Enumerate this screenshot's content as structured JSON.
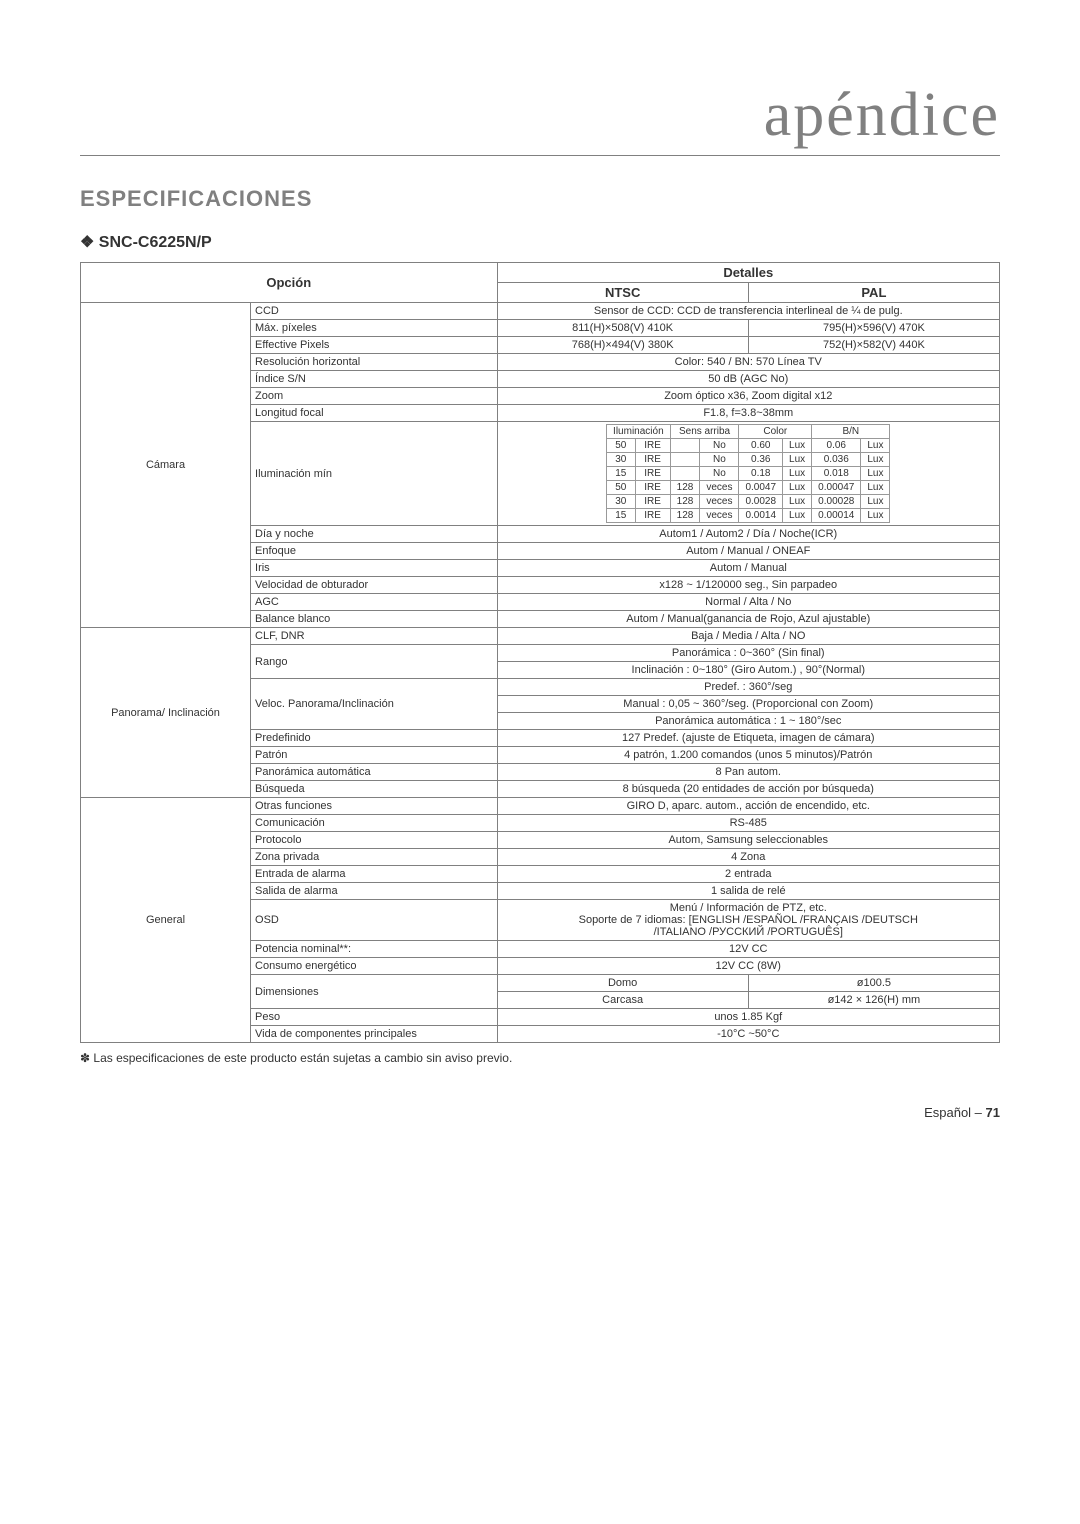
{
  "header": {
    "title_right": "apéndice"
  },
  "section": {
    "title": "ESPECIFICACIONES",
    "model": "SNC-C6225N/P"
  },
  "tableHeader": {
    "opcion": "Opción",
    "detalles": "Detalles",
    "ntsc": "NTSC",
    "pal": "PAL"
  },
  "groups": {
    "camara": "Cámara",
    "panorama": "Panorama/ Inclinación",
    "general": "General"
  },
  "camara": {
    "ccd": {
      "label": "CCD",
      "value": "Sensor de CCD: CCD de transferencia interlineal de ¼ de pulg."
    },
    "max_pixeles": {
      "label": "Máx. píxeles",
      "ntsc": "811(H)×508(V) 410K",
      "pal": "795(H)×596(V) 470K"
    },
    "effective_pixels": {
      "label": "Effective Pixels",
      "ntsc": "768(H)×494(V) 380K",
      "pal": "752(H)×582(V) 440K"
    },
    "resolucion": {
      "label": "Resolución horizontal",
      "value": "Color: 540 / BN: 570 Línea TV"
    },
    "indice_sn": {
      "label": "Índice S/N",
      "value": "50 dB (AGC No)"
    },
    "zoom": {
      "label": "Zoom",
      "value": "Zoom óptico x36, Zoom digital x12"
    },
    "longitud_focal": {
      "label": "Longitud focal",
      "value": "F1.8, f=3.8~38mm"
    },
    "iluminacion_min": {
      "label": "Iluminación mín"
    },
    "ilum_hdr": {
      "iluminacion": "Iluminación",
      "sens": "Sens arriba",
      "color": "Color",
      "bn": "B/N"
    },
    "ilum_rows": [
      {
        "a": "50",
        "b": "IRE",
        "c": "",
        "d": "No",
        "e": "0.60",
        "f": "Lux",
        "g": "0.06",
        "h": "Lux"
      },
      {
        "a": "30",
        "b": "IRE",
        "c": "",
        "d": "No",
        "e": "0.36",
        "f": "Lux",
        "g": "0.036",
        "h": "Lux"
      },
      {
        "a": "15",
        "b": "IRE",
        "c": "",
        "d": "No",
        "e": "0.18",
        "f": "Lux",
        "g": "0.018",
        "h": "Lux"
      },
      {
        "a": "50",
        "b": "IRE",
        "c": "128",
        "d": "veces",
        "e": "0.0047",
        "f": "Lux",
        "g": "0.00047",
        "h": "Lux"
      },
      {
        "a": "30",
        "b": "IRE",
        "c": "128",
        "d": "veces",
        "e": "0.0028",
        "f": "Lux",
        "g": "0.00028",
        "h": "Lux"
      },
      {
        "a": "15",
        "b": "IRE",
        "c": "128",
        "d": "veces",
        "e": "0.0014",
        "f": "Lux",
        "g": "0.00014",
        "h": "Lux"
      }
    ],
    "dia_noche": {
      "label": "Día y noche",
      "value": "Autom1 / Autom2 / Día / Noche(ICR)"
    },
    "enfoque": {
      "label": "Enfoque",
      "value": "Autom / Manual / ONEAF"
    },
    "iris": {
      "label": "Iris",
      "value": "Autom / Manual"
    },
    "velocidad_obturador": {
      "label": "Velocidad de obturador",
      "value": "x128 ~ 1/120000 seg., Sin parpadeo"
    },
    "agc": {
      "label": "AGC",
      "value": "Normal / Alta / No"
    },
    "balance": {
      "label": "Balance blanco",
      "value": "Autom / Manual(ganancia de Rojo, Azul ajustable)"
    },
    "clf_dnr": {
      "label": "CLF, DNR",
      "value": "Baja / Media / Alta / NO"
    }
  },
  "panorama": {
    "rango": {
      "label": "Rango",
      "line1": "Panorámica : 0~360° (Sin final)",
      "line2": "Inclinación : 0~180° (Giro Autom.) , 90°(Normal)"
    },
    "veloc": {
      "label": "Veloc. Panorama/Inclinación",
      "line1": "Predef. : 360°/seg",
      "line2": "Manual : 0,05 ~ 360°/seg. (Proporcional con Zoom)",
      "line3": "Panorámica automática : 1 ~ 180°/sec"
    },
    "predefinido": {
      "label": "Predefinido",
      "value": "127 Predef. (ajuste de Etiqueta, imagen de cámara)"
    },
    "patron": {
      "label": "Patrón",
      "value": "4 patrón, 1.200 comandos (unos 5 minutos)/Patrón"
    },
    "panoramica_auto": {
      "label": "Panorámica automática",
      "value": "8 Pan autom."
    },
    "busqueda": {
      "label": "Búsqueda",
      "value": "8 búsqueda (20 entidades de acción por búsqueda)"
    },
    "otras": {
      "label": "Otras funciones",
      "value": "GIRO D, aparc. autom., acción de encendido, etc."
    }
  },
  "general": {
    "comunicacion": {
      "label": "Comunicación",
      "value": "RS-485"
    },
    "protocolo": {
      "label": "Protocolo",
      "value": "Autom, Samsung seleccionables"
    },
    "zona_privada": {
      "label": "Zona privada",
      "value": "4 Zona"
    },
    "entrada_alarma": {
      "label": "Entrada de alarma",
      "value": "2 entrada"
    },
    "salida_alarma": {
      "label": "Salida de alarma",
      "value": "1 salida de relé"
    },
    "osd": {
      "label": "OSD",
      "line1": "Menú / Información de PTZ, etc.",
      "line2": "Soporte de 7 idiomas: [ENGLISH /ESPAÑOL /FRANÇAIS /DEUTSCH",
      "line3": "/ITALIANO /РУССКИЙ /PORTUGUÊS]"
    },
    "potencia": {
      "label": "Potencia nominal**:",
      "value": "12V CC"
    },
    "consumo": {
      "label": "Consumo energético",
      "value": "12V CC (8W)"
    },
    "dimensiones": {
      "label": "Dimensiones",
      "domo_label": "Domo",
      "domo_value": "ø100.5",
      "carcasa_label": "Carcasa",
      "carcasa_value": "ø142 × 126(H) mm"
    },
    "peso": {
      "label": "Peso",
      "value": "unos 1.85 Kgf"
    },
    "vida": {
      "label": "Vida de componentes principales",
      "value": "-10°C ~50°C"
    }
  },
  "note": "Las especificaciones de este producto están sujetas a cambio sin aviso previo.",
  "footer": {
    "lang": "Español –",
    "page": "71"
  }
}
